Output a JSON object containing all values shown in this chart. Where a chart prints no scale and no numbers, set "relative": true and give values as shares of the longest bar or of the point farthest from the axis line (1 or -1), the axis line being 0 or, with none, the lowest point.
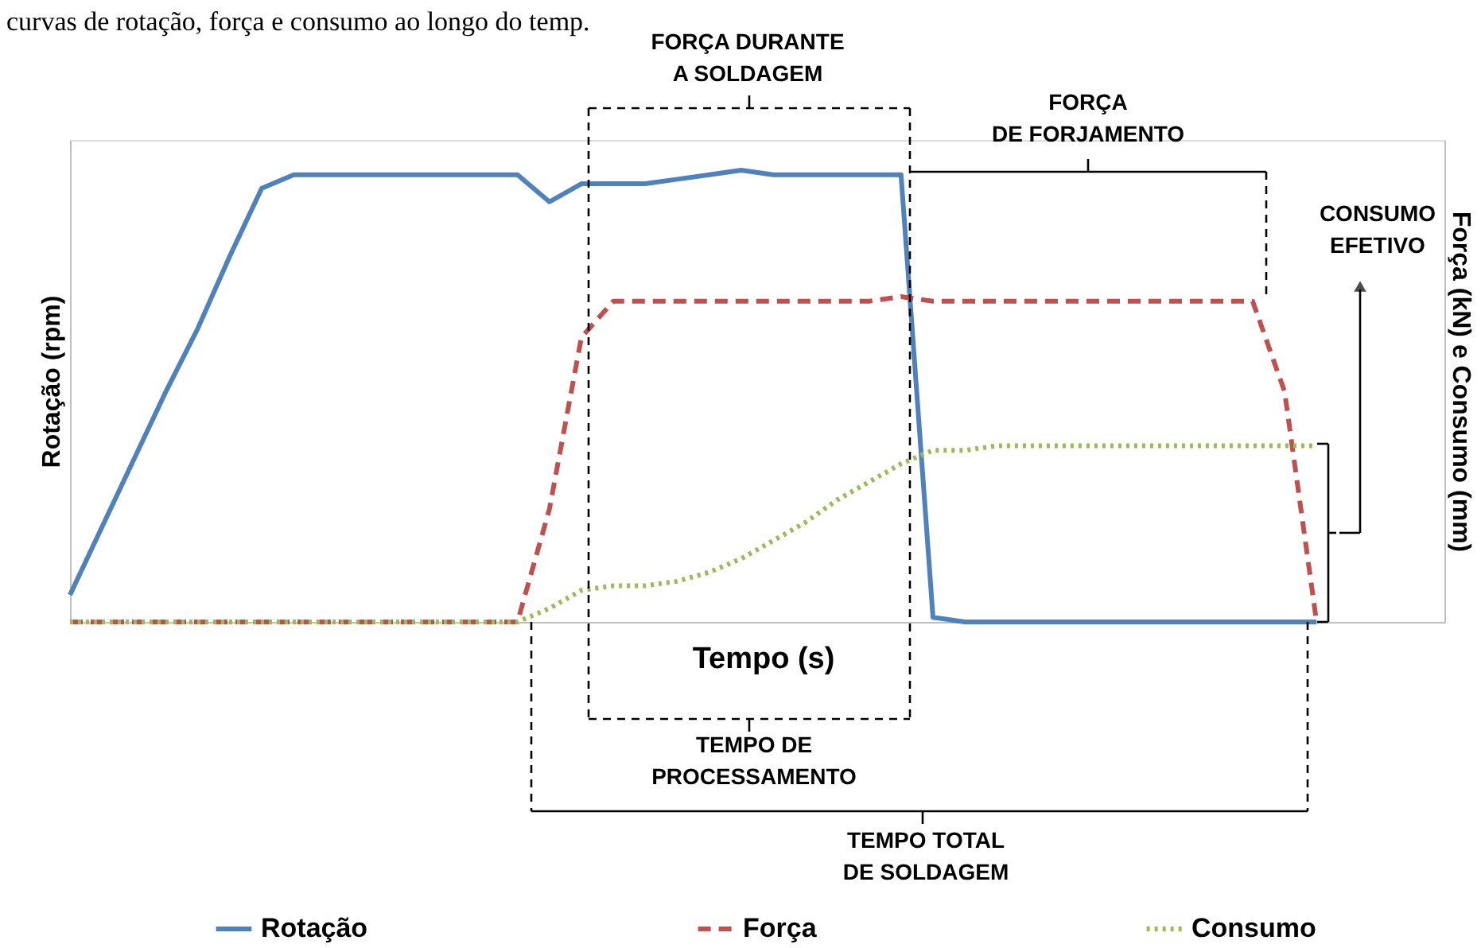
{
  "chart_data": {
    "type": "line",
    "relative": true,
    "tick_labels": false,
    "grid": false,
    "legend": "bottom",
    "ylabel": "Rotação (rpm)",
    "y2label": "Força (kN) e Consumo (mm)",
    "xlabel": "Tempo (s)",
    "annotations": [
      "curvas de rotação, força e consumo ao longo do temp.",
      "FORÇA DURANTE\nA SOLDAGEM",
      "FORÇA\nDE FORJAMENTO",
      "CONSUMO\nEFETIVO",
      "TEMPO DE\nPROCESSAMENTO",
      "TEMPO TOTAL\nDE SOLDAGEM"
    ],
    "categories": [
      null,
      null,
      null,
      null,
      null,
      null,
      null,
      null,
      null,
      null,
      null,
      null,
      null,
      null,
      null,
      null,
      null,
      null,
      null,
      null,
      null,
      null,
      null,
      null,
      null,
      null,
      null,
      null,
      null,
      null,
      null,
      null,
      null,
      null,
      null,
      null,
      null,
      null,
      null,
      null,
      null,
      null,
      null,
      null
    ],
    "series": [
      {
        "name": "Rotação",
        "color": "#4f81bd",
        "line_style": "solid",
        "values": [
          0.06,
          0.21,
          0.36,
          0.51,
          0.65,
          0.81,
          0.96,
          0.99,
          0.99,
          0.99,
          0.99,
          0.99,
          0.99,
          0.99,
          0.99,
          0.93,
          0.97,
          0.97,
          0.97,
          0.98,
          0.99,
          1.0,
          0.99,
          0.99,
          0.99,
          0.99,
          0.99,
          0.01,
          0,
          0,
          0,
          0,
          0,
          0,
          0,
          0,
          0,
          0,
          0,
          0,
          null,
          null,
          null,
          null
        ]
      },
      {
        "name": "Força",
        "color": "#c0504d",
        "line_style": "dashed",
        "values": [
          0,
          0,
          0,
          0,
          0,
          0,
          0,
          0,
          0,
          0,
          0,
          0,
          0,
          0,
          0,
          0.25,
          0.63,
          0.71,
          0.71,
          0.71,
          0.71,
          0.71,
          0.71,
          0.71,
          0.71,
          0.71,
          0.72,
          0.71,
          0.71,
          0.71,
          0.71,
          0.71,
          0.71,
          0.71,
          0.71,
          0.71,
          0.71,
          0.71,
          0.51,
          0,
          null,
          null,
          null,
          null
        ]
      },
      {
        "name": "Consumo",
        "color": "#9bbb59",
        "line_style": "dotted",
        "values": [
          0,
          0,
          0,
          0,
          0,
          0,
          0,
          0,
          0,
          0,
          0,
          0,
          0,
          0,
          0,
          0.03,
          0.07,
          0.08,
          0.08,
          0.09,
          0.11,
          0.14,
          0.18,
          0.22,
          0.27,
          0.31,
          0.35,
          0.38,
          0.38,
          0.39,
          0.39,
          0.39,
          0.39,
          0.39,
          0.39,
          0.39,
          0.39,
          0.39,
          0.39,
          0.39,
          null,
          null,
          null,
          null
        ]
      }
    ]
  }
}
